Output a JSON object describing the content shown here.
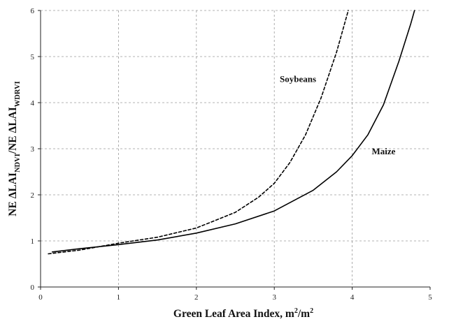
{
  "chart_data": {
    "type": "line",
    "xlabel_main": "Green Leaf Area Index, m",
    "xlabel_sup1": "2",
    "xlabel_mid": "/m",
    "xlabel_sup2": "2",
    "ylabel_parts": [
      "NE ΔLAI",
      "NDVI",
      "/NE ΔLAI",
      "WDRVI"
    ],
    "xlim": [
      0,
      5
    ],
    "ylim": [
      0,
      6
    ],
    "xticks": [
      "0",
      "1",
      "2",
      "3",
      "4",
      "5"
    ],
    "yticks": [
      "0",
      "1",
      "2",
      "3",
      "4",
      "5",
      "6"
    ],
    "grid": true,
    "series": [
      {
        "name": "Soybeans",
        "style": "dashed",
        "x": [
          0.1,
          0.5,
          1.0,
          1.5,
          2.0,
          2.5,
          2.8,
          3.0,
          3.2,
          3.4,
          3.6,
          3.8,
          3.95
        ],
        "y": [
          0.72,
          0.8,
          0.95,
          1.08,
          1.28,
          1.62,
          1.95,
          2.25,
          2.7,
          3.3,
          4.1,
          5.1,
          6.0
        ]
      },
      {
        "name": "Maize",
        "style": "solid",
        "x": [
          0.15,
          0.5,
          1.0,
          1.5,
          2.0,
          2.5,
          3.0,
          3.5,
          3.8,
          4.0,
          4.2,
          4.4,
          4.6,
          4.75,
          4.8
        ],
        "y": [
          0.76,
          0.83,
          0.92,
          1.02,
          1.17,
          1.37,
          1.65,
          2.1,
          2.5,
          2.85,
          3.3,
          3.95,
          4.9,
          5.7,
          6.0
        ]
      }
    ]
  }
}
